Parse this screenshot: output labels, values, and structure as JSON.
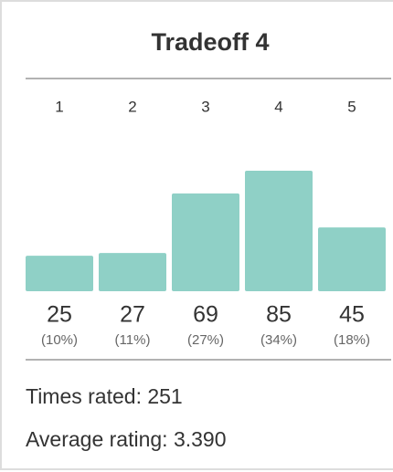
{
  "chart_data": {
    "type": "bar",
    "title": "Tradeoff 4",
    "categories": [
      "1",
      "2",
      "3",
      "4",
      "5"
    ],
    "values": [
      25,
      27,
      69,
      85,
      45
    ],
    "percent_labels": [
      "(10%)",
      "(11%)",
      "(27%)",
      "(34%)",
      "(18%)"
    ],
    "color": "#8fd0c6",
    "stats": [
      "Times rated: 251",
      "Average rating: 3.390"
    ]
  }
}
